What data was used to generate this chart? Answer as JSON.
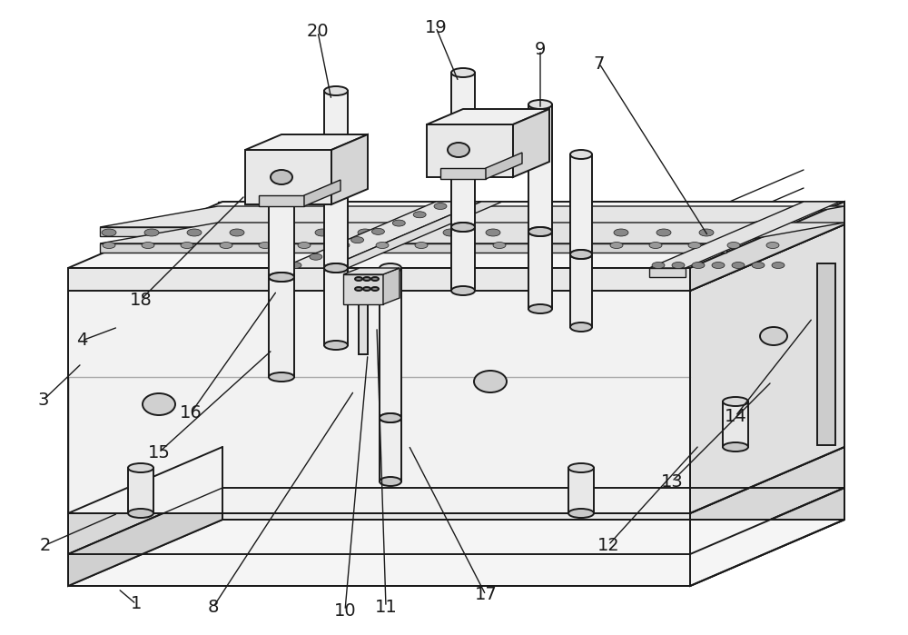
{
  "bg_color": "#ffffff",
  "line_color": "#1a1a1a",
  "line_width": 1.4,
  "fig_width": 10.0,
  "fig_height": 6.99,
  "dpi": 100
}
